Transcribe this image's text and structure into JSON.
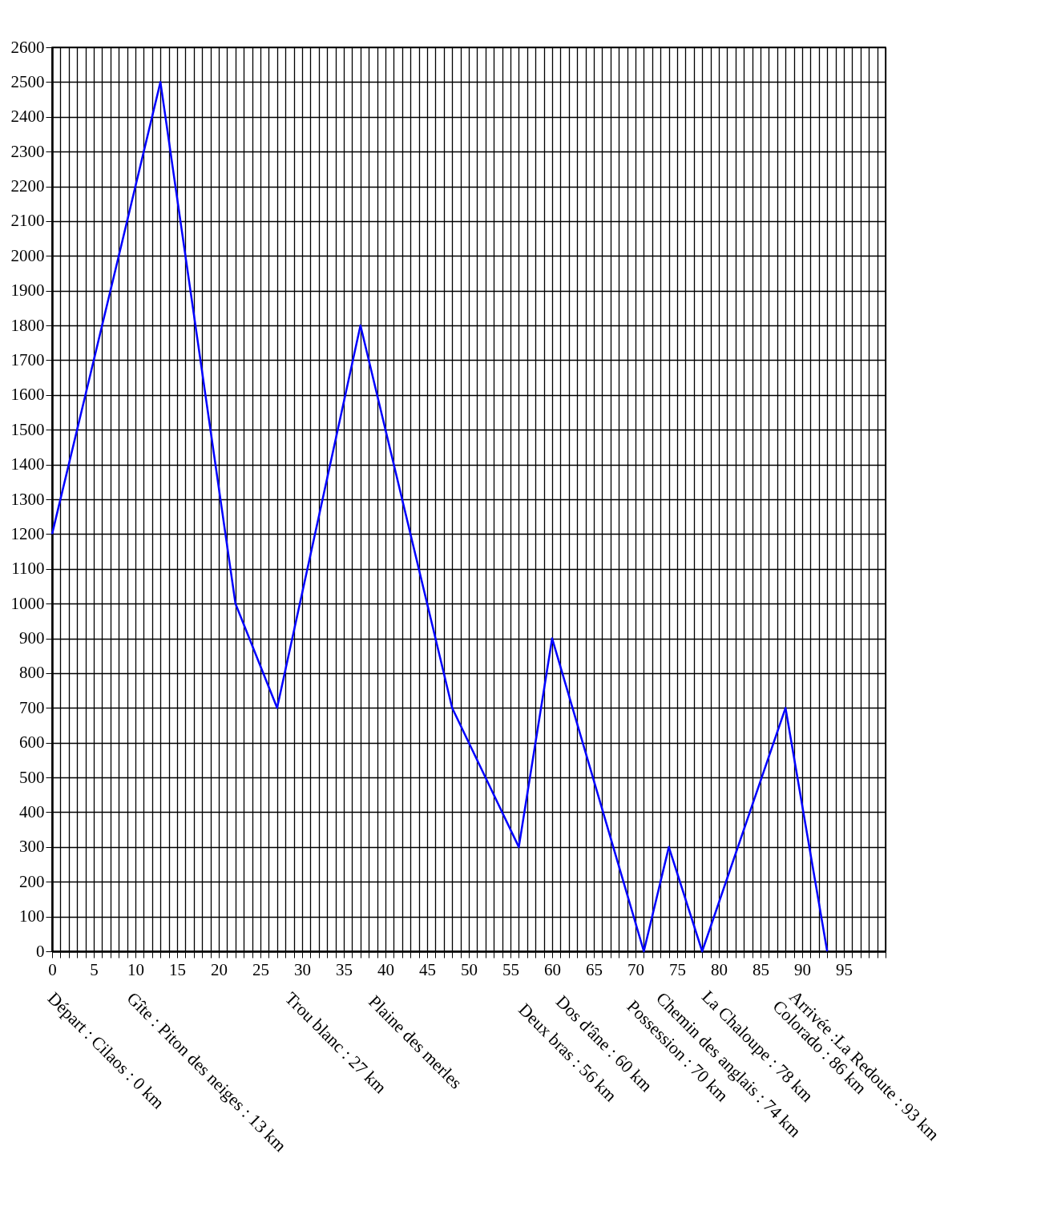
{
  "chart_data": {
    "type": "line",
    "x": [
      0,
      13,
      22,
      27,
      37,
      48,
      56,
      60,
      71,
      74,
      78,
      88,
      93
    ],
    "series": [
      {
        "color": "#0000ff",
        "values": [
          1200,
          2500,
          1000,
          700,
          1800,
          700,
          300,
          900,
          0,
          300,
          0,
          700,
          0
        ]
      }
    ],
    "xlim": [
      0,
      100
    ],
    "xticks": [
      0,
      {
        "value": 1,
        "label": null
      },
      {
        "value": 2,
        "label": null
      },
      {
        "value": 3,
        "label": null
      },
      {
        "value": 4,
        "label": null
      },
      5,
      {
        "value": 6,
        "label": null
      },
      {
        "value": 7,
        "label": null
      },
      {
        "value": 8,
        "label": null
      },
      {
        "value": 9,
        "label": null
      },
      10,
      {
        "value": 11,
        "label": null
      },
      {
        "value": 12,
        "label": null
      },
      {
        "value": 13,
        "label": null
      },
      {
        "value": 14,
        "label": null
      },
      15,
      {
        "value": 16,
        "label": null
      },
      {
        "value": 17,
        "label": null
      },
      {
        "value": 18,
        "label": null
      },
      {
        "value": 19,
        "label": null
      },
      20,
      {
        "value": 21,
        "label": null
      },
      {
        "value": 22,
        "label": null
      },
      {
        "value": 23,
        "label": null
      },
      {
        "value": 24,
        "label": null
      },
      25,
      {
        "value": 26,
        "label": null
      },
      {
        "value": 27,
        "label": null
      },
      {
        "value": 28,
        "label": null
      },
      {
        "value": 29,
        "label": null
      },
      30,
      {
        "value": 31,
        "label": null
      },
      {
        "value": 32,
        "label": null
      },
      {
        "value": 33,
        "label": null
      },
      {
        "value": 34,
        "label": null
      },
      35,
      {
        "value": 36,
        "label": null
      },
      {
        "value": 37,
        "label": null
      },
      {
        "value": 38,
        "label": null
      },
      {
        "value": 39,
        "label": null
      },
      40,
      {
        "value": 41,
        "label": null
      },
      {
        "value": 42,
        "label": null
      },
      {
        "value": 43,
        "label": null
      },
      {
        "value": 44,
        "label": null
      },
      45,
      {
        "value": 46,
        "label": null
      },
      {
        "value": 47,
        "label": null
      },
      {
        "value": 48,
        "label": null
      },
      {
        "value": 49,
        "label": null
      },
      50,
      {
        "value": 51,
        "label": null
      },
      {
        "value": 52,
        "label": null
      },
      {
        "value": 53,
        "label": null
      },
      {
        "value": 54,
        "label": null
      },
      55,
      {
        "value": 56,
        "label": null
      },
      {
        "value": 57,
        "label": null
      },
      {
        "value": 58,
        "label": null
      },
      {
        "value": 59,
        "label": null
      },
      60,
      {
        "value": 61,
        "label": null
      },
      {
        "value": 62,
        "label": null
      },
      {
        "value": 63,
        "label": null
      },
      {
        "value": 64,
        "label": null
      },
      65,
      {
        "value": 66,
        "label": null
      },
      {
        "value": 67,
        "label": null
      },
      {
        "value": 68,
        "label": null
      },
      {
        "value": 69,
        "label": null
      },
      70,
      {
        "value": 71,
        "label": null
      },
      {
        "value": 72,
        "label": null
      },
      {
        "value": 73,
        "label": null
      },
      {
        "value": 74,
        "label": null
      },
      75,
      {
        "value": 76,
        "label": null
      },
      {
        "value": 77,
        "label": null
      },
      {
        "value": 78,
        "label": null
      },
      {
        "value": 79,
        "label": null
      },
      80,
      {
        "value": 81,
        "label": null
      },
      {
        "value": 82,
        "label": null
      },
      {
        "value": 83,
        "label": null
      },
      {
        "value": 84,
        "label": null
      },
      85,
      {
        "value": 86,
        "label": null
      },
      {
        "value": 87,
        "label": null
      },
      {
        "value": 88,
        "label": null
      },
      {
        "value": 89,
        "label": null
      },
      90,
      {
        "value": 91,
        "label": null
      },
      {
        "value": 92,
        "label": null
      },
      {
        "value": 93,
        "label": null
      },
      {
        "value": 94,
        "label": null
      },
      95,
      {
        "value": 96,
        "label": null
      },
      {
        "value": 97,
        "label": null
      },
      {
        "value": 98,
        "label": null
      },
      {
        "value": 99,
        "label": null
      },
      {
        "value": 100,
        "label": null
      }
    ],
    "ylim": [
      0,
      2600
    ],
    "yticks": [
      0,
      100,
      200,
      300,
      400,
      500,
      600,
      700,
      800,
      900,
      1000,
      1100,
      1200,
      1300,
      1400,
      1500,
      1600,
      1700,
      1800,
      1900,
      2000,
      2100,
      2200,
      2300,
      2400,
      2500,
      2600
    ],
    "grid": true,
    "marker": "none",
    "line_style": "solid",
    "annotations": [
      "Départ : Cilaos : 0 km",
      "Gîte : Piton des neiges : 13 km",
      "Trou blanc : 27 km",
      "Plaine des merles",
      "Deux bras : 56 km",
      "Dos d'âne : 60 km",
      "Possession : 70 km",
      "Chemin des anglais : 74 km",
      "La Chaloupe : 78 km",
      "Colorado : 86 km",
      "Arrivée :La Redoute : 93 km"
    ]
  }
}
